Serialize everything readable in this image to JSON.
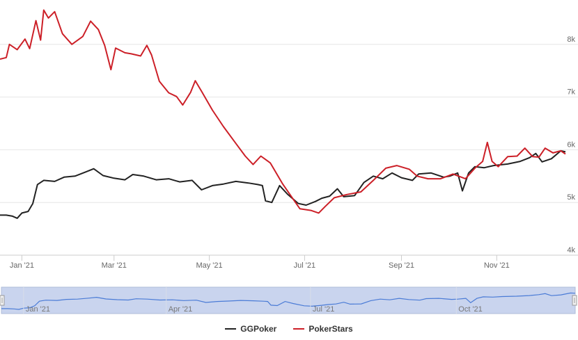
{
  "chart_data": {
    "type": "line",
    "ylim": [
      4000,
      9000
    ],
    "y_ticks": [
      "4k",
      "5k",
      "6k",
      "7k",
      "8k"
    ],
    "y_tick_values": [
      4000,
      5000,
      6000,
      7000,
      8000
    ],
    "x_range": [
      "2020-12-18",
      "2021-12-15"
    ],
    "x_ticks": [
      "Jan '21",
      "Mar '21",
      "May '21",
      "Jul '21",
      "Sep '21",
      "Nov '21"
    ],
    "x_tick_dates": [
      "2021-01-01",
      "2021-03-01",
      "2021-05-01",
      "2021-07-01",
      "2021-09-01",
      "2021-11-01"
    ],
    "grid": true,
    "legend_position": "bottom-center",
    "series": [
      {
        "name": "GGPoker",
        "color": "#222222",
        "points": [
          [
            "2020-12-18",
            4760
          ],
          [
            "2020-12-22",
            4760
          ],
          [
            "2020-12-26",
            4740
          ],
          [
            "2020-12-29",
            4700
          ],
          [
            "2021-01-01",
            4800
          ],
          [
            "2021-01-05",
            4830
          ],
          [
            "2021-01-08",
            4980
          ],
          [
            "2021-01-11",
            5340
          ],
          [
            "2021-01-15",
            5420
          ],
          [
            "2021-01-22",
            5400
          ],
          [
            "2021-01-28",
            5480
          ],
          [
            "2021-02-04",
            5500
          ],
          [
            "2021-02-11",
            5580
          ],
          [
            "2021-02-16",
            5640
          ],
          [
            "2021-02-22",
            5510
          ],
          [
            "2021-03-01",
            5460
          ],
          [
            "2021-03-08",
            5430
          ],
          [
            "2021-03-13",
            5530
          ],
          [
            "2021-03-20",
            5500
          ],
          [
            "2021-03-28",
            5430
          ],
          [
            "2021-04-05",
            5450
          ],
          [
            "2021-04-12",
            5390
          ],
          [
            "2021-04-20",
            5420
          ],
          [
            "2021-04-26",
            5240
          ],
          [
            "2021-05-03",
            5320
          ],
          [
            "2021-05-10",
            5350
          ],
          [
            "2021-05-18",
            5400
          ],
          [
            "2021-05-26",
            5370
          ],
          [
            "2021-06-01",
            5340
          ],
          [
            "2021-06-04",
            5320
          ],
          [
            "2021-06-06",
            5030
          ],
          [
            "2021-06-10",
            5000
          ],
          [
            "2021-06-15",
            5320
          ],
          [
            "2021-06-20",
            5160
          ],
          [
            "2021-06-27",
            4980
          ],
          [
            "2021-07-02",
            4950
          ],
          [
            "2021-07-08",
            5020
          ],
          [
            "2021-07-12",
            5080
          ],
          [
            "2021-07-17",
            5120
          ],
          [
            "2021-07-22",
            5260
          ],
          [
            "2021-07-26",
            5110
          ],
          [
            "2021-08-02",
            5130
          ],
          [
            "2021-08-08",
            5380
          ],
          [
            "2021-08-14",
            5500
          ],
          [
            "2021-08-20",
            5450
          ],
          [
            "2021-08-26",
            5560
          ],
          [
            "2021-09-01",
            5470
          ],
          [
            "2021-09-08",
            5420
          ],
          [
            "2021-09-12",
            5540
          ],
          [
            "2021-09-20",
            5560
          ],
          [
            "2021-09-28",
            5480
          ],
          [
            "2021-10-02",
            5500
          ],
          [
            "2021-10-07",
            5560
          ],
          [
            "2021-10-10",
            5220
          ],
          [
            "2021-10-14",
            5560
          ],
          [
            "2021-10-18",
            5680
          ],
          [
            "2021-10-24",
            5660
          ],
          [
            "2021-10-30",
            5700
          ],
          [
            "2021-11-08",
            5730
          ],
          [
            "2021-11-16",
            5780
          ],
          [
            "2021-11-22",
            5850
          ],
          [
            "2021-11-26",
            5930
          ],
          [
            "2021-11-30",
            5770
          ],
          [
            "2021-12-06",
            5830
          ],
          [
            "2021-12-12",
            5980
          ],
          [
            "2021-12-15",
            5960
          ]
        ]
      },
      {
        "name": "PokerStars",
        "color": "#cc1f27",
        "points": [
          [
            "2020-12-18",
            7720
          ],
          [
            "2020-12-22",
            7750
          ],
          [
            "2020-12-24",
            8000
          ],
          [
            "2020-12-29",
            7900
          ],
          [
            "2021-01-03",
            8100
          ],
          [
            "2021-01-06",
            7920
          ],
          [
            "2021-01-10",
            8450
          ],
          [
            "2021-01-13",
            8080
          ],
          [
            "2021-01-15",
            8650
          ],
          [
            "2021-01-18",
            8500
          ],
          [
            "2021-01-22",
            8620
          ],
          [
            "2021-01-27",
            8200
          ],
          [
            "2021-02-02",
            8000
          ],
          [
            "2021-02-09",
            8150
          ],
          [
            "2021-02-14",
            8440
          ],
          [
            "2021-02-19",
            8280
          ],
          [
            "2021-02-23",
            7980
          ],
          [
            "2021-02-27",
            7520
          ],
          [
            "2021-03-02",
            7930
          ],
          [
            "2021-03-08",
            7840
          ],
          [
            "2021-03-12",
            7820
          ],
          [
            "2021-03-18",
            7780
          ],
          [
            "2021-03-22",
            7980
          ],
          [
            "2021-03-25",
            7800
          ],
          [
            "2021-03-30",
            7300
          ],
          [
            "2021-04-05",
            7080
          ],
          [
            "2021-04-10",
            7010
          ],
          [
            "2021-04-14",
            6850
          ],
          [
            "2021-04-19",
            7090
          ],
          [
            "2021-04-22",
            7310
          ],
          [
            "2021-04-26",
            7110
          ],
          [
            "2021-05-03",
            6750
          ],
          [
            "2021-05-10",
            6440
          ],
          [
            "2021-05-18",
            6120
          ],
          [
            "2021-05-24",
            5880
          ],
          [
            "2021-05-29",
            5720
          ],
          [
            "2021-06-03",
            5880
          ],
          [
            "2021-06-09",
            5750
          ],
          [
            "2021-06-17",
            5350
          ],
          [
            "2021-06-24",
            5050
          ],
          [
            "2021-06-28",
            4880
          ],
          [
            "2021-07-05",
            4850
          ],
          [
            "2021-07-10",
            4800
          ],
          [
            "2021-07-14",
            4920
          ],
          [
            "2021-07-20",
            5090
          ],
          [
            "2021-07-28",
            5150
          ],
          [
            "2021-08-06",
            5200
          ],
          [
            "2021-08-14",
            5420
          ],
          [
            "2021-08-22",
            5650
          ],
          [
            "2021-08-29",
            5700
          ],
          [
            "2021-09-06",
            5630
          ],
          [
            "2021-09-11",
            5500
          ],
          [
            "2021-09-18",
            5450
          ],
          [
            "2021-09-26",
            5450
          ],
          [
            "2021-10-04",
            5540
          ],
          [
            "2021-10-12",
            5450
          ],
          [
            "2021-10-18",
            5650
          ],
          [
            "2021-10-23",
            5780
          ],
          [
            "2021-10-26",
            6140
          ],
          [
            "2021-10-29",
            5780
          ],
          [
            "2021-11-02",
            5680
          ],
          [
            "2021-11-08",
            5870
          ],
          [
            "2021-11-14",
            5880
          ],
          [
            "2021-11-19",
            6030
          ],
          [
            "2021-11-24",
            5870
          ],
          [
            "2021-11-28",
            5860
          ],
          [
            "2021-12-02",
            6030
          ],
          [
            "2021-12-07",
            5940
          ],
          [
            "2021-12-12",
            5980
          ],
          [
            "2021-12-15",
            5920
          ]
        ]
      }
    ],
    "navigator": {
      "x_ticks": [
        "Jan '21",
        "Apr '21",
        "Jul '21",
        "Oct '21"
      ],
      "x_tick_dates": [
        "2021-01-01",
        "2021-04-01",
        "2021-07-01",
        "2021-10-01"
      ],
      "color": "#4a7bd6"
    }
  },
  "legend": {
    "items": [
      {
        "label": "GGPoker",
        "color": "#222222"
      },
      {
        "label": "PokerStars",
        "color": "#cc1f27"
      }
    ]
  }
}
